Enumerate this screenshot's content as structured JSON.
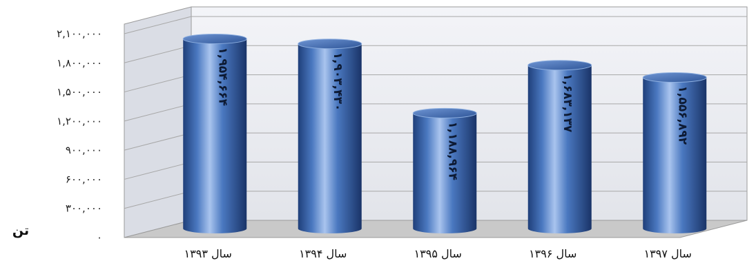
{
  "chart_data": {
    "type": "bar",
    "style": "3d-cylinder",
    "categories": [
      "سال ۱۳۹۳",
      "سال ۱۳۹۴",
      "سال ۱۳۹۵",
      "سال ۱۳۹۶",
      "سال ۱۳۹۷"
    ],
    "values": [
      1954664,
      1903430,
      1188964,
      1683137,
      1556892
    ],
    "data_labels": [
      "۱,۹۵۴,۶۶۴",
      "۱,۹۰۳,۴۳۰",
      "۱,۱۸۸,۹۶۴",
      "۱,۶۸۳,۱۳۷",
      "۱,۵۵۶,۸۹۲"
    ],
    "y_ticks": [
      0,
      300000,
      600000,
      900000,
      1200000,
      1500000,
      1800000,
      2100000
    ],
    "y_tick_labels": [
      "۰",
      "۳۰۰,۰۰۰",
      "۶۰۰,۰۰۰",
      "۹۰۰,۰۰۰",
      "۱,۲۰۰,۰۰۰",
      "۱,۵۰۰,۰۰۰",
      "۱,۸۰۰,۰۰۰",
      "۲,۱۰۰,۰۰۰"
    ],
    "ylim": [
      0,
      2100000
    ],
    "ylabel": "تن",
    "grid": true,
    "legend": "none",
    "colors": {
      "bar": "#4a78c0",
      "bar_dark": "#1f3f7a",
      "bar_light": "#a9c4ee",
      "wall": "#eceef3",
      "floor": "#c9c9c9"
    }
  }
}
